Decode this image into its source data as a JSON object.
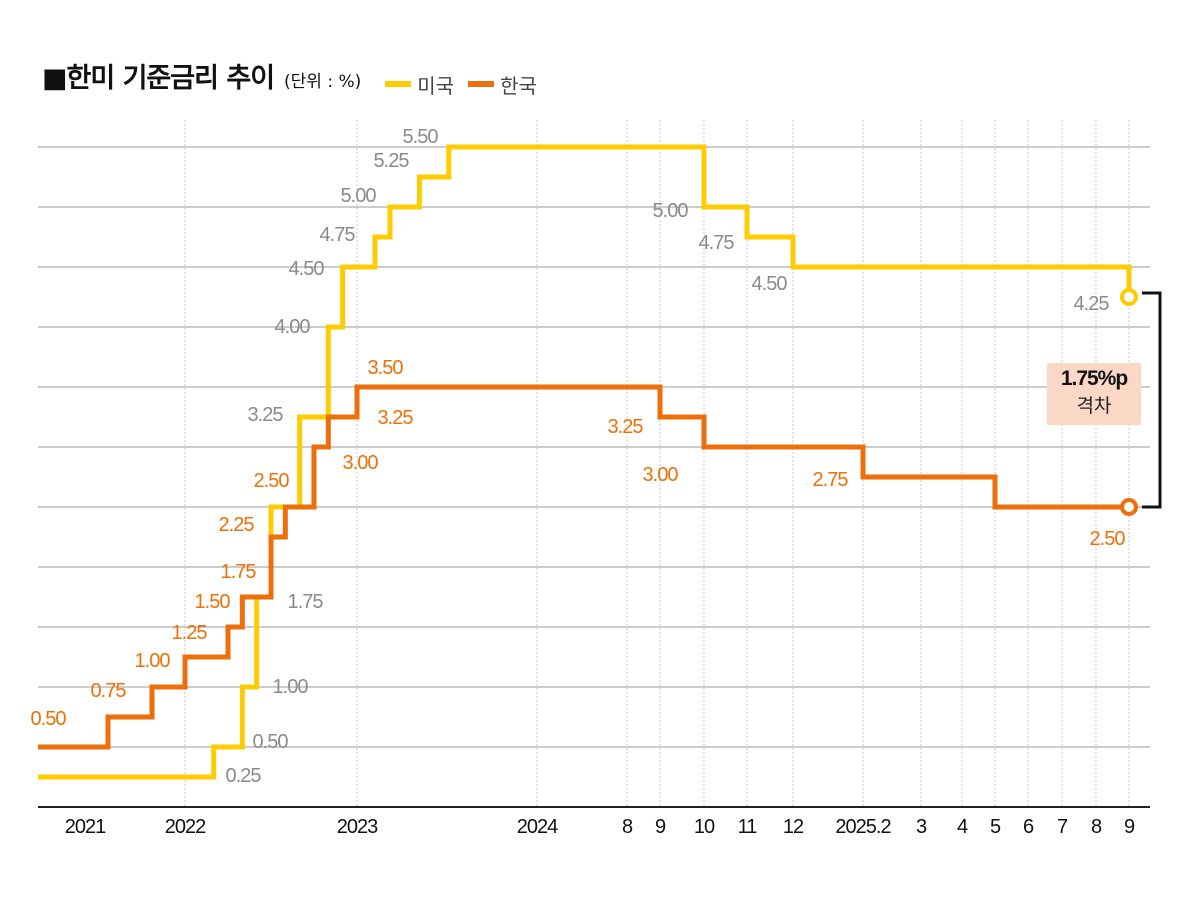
{
  "chart_data": {
    "type": "line",
    "step": true,
    "title": "■한미 기준금리 추이",
    "unit": "(단위 : %)",
    "ylim": [
      0,
      6
    ],
    "grid": true,
    "legend_placement": "top",
    "x_ticks": [
      {
        "date": "2021-06",
        "label": "2021"
      },
      {
        "date": "2022-01",
        "label": "2022"
      },
      {
        "date": "2023-01",
        "label": "2023"
      },
      {
        "date": "2024-01",
        "label": "2024"
      },
      {
        "date": "2024-08",
        "label": "8"
      },
      {
        "date": "2024-09",
        "label": "9"
      },
      {
        "date": "2024-10",
        "label": "10"
      },
      {
        "date": "2024-11",
        "label": "11"
      },
      {
        "date": "2024-12",
        "label": "12"
      },
      {
        "date": "2025-02",
        "label": "2025.2"
      },
      {
        "date": "2025-03",
        "label": "3"
      },
      {
        "date": "2025-04",
        "label": "4"
      },
      {
        "date": "2025-05",
        "label": "5"
      },
      {
        "date": "2025-06",
        "label": "6"
      },
      {
        "date": "2025-07",
        "label": "7"
      },
      {
        "date": "2025-08",
        "label": "8"
      },
      {
        "date": "2025-09",
        "label": "9"
      }
    ],
    "series": [
      {
        "name": "미국",
        "color": "#ffcc00",
        "label_color": "#8a8a8a",
        "points": [
          {
            "date": "2021-01",
            "value": 0.25,
            "label": "0.25"
          },
          {
            "date": "2022-03",
            "value": 0.5,
            "label": "0.50"
          },
          {
            "date": "2022-05",
            "value": 1.0,
            "label": "1.00"
          },
          {
            "date": "2022-06",
            "value": 1.75,
            "label": "1.75"
          },
          {
            "date": "2022-07",
            "value": 2.5,
            "label": ""
          },
          {
            "date": "2022-09",
            "value": 3.25,
            "label": "3.25"
          },
          {
            "date": "2022-11",
            "value": 4.0,
            "label": "4.00"
          },
          {
            "date": "2022-12",
            "value": 4.5,
            "label": "4.50"
          },
          {
            "date": "2023-02",
            "value": 4.75,
            "label": "4.75"
          },
          {
            "date": "2023-03",
            "value": 5.0,
            "label": "5.00"
          },
          {
            "date": "2023-05",
            "value": 5.25,
            "label": "5.25"
          },
          {
            "date": "2023-07",
            "value": 5.5,
            "label": "5.50"
          },
          {
            "date": "2024-10",
            "value": 5.0,
            "label": "5.00"
          },
          {
            "date": "2024-11",
            "value": 4.75,
            "label": "4.75"
          },
          {
            "date": "2024-12",
            "value": 4.5,
            "label": "4.50"
          },
          {
            "date": "2025-09",
            "value": 4.25,
            "label": "4.25"
          }
        ]
      },
      {
        "name": "한국",
        "color": "#ec6f0b",
        "label_color": "#ec6f0b",
        "points": [
          {
            "date": "2021-01",
            "value": 0.5,
            "label": "0.50"
          },
          {
            "date": "2021-08",
            "value": 0.75,
            "label": "0.75"
          },
          {
            "date": "2021-11",
            "value": 1.0,
            "label": "1.00"
          },
          {
            "date": "2022-01",
            "value": 1.25,
            "label": "1.25"
          },
          {
            "date": "2022-04",
            "value": 1.5,
            "label": "1.50"
          },
          {
            "date": "2022-05",
            "value": 1.75,
            "label": "1.75"
          },
          {
            "date": "2022-07",
            "value": 2.25,
            "label": "2.25"
          },
          {
            "date": "2022-08",
            "value": 2.5,
            "label": "2.50"
          },
          {
            "date": "2022-10",
            "value": 3.0,
            "label": "3.00"
          },
          {
            "date": "2022-11",
            "value": 3.25,
            "label": "3.25"
          },
          {
            "date": "2023-01",
            "value": 3.5,
            "label": "3.50"
          },
          {
            "date": "2024-09",
            "value": 3.25,
            "label": "3.25"
          },
          {
            "date": "2024-10",
            "value": 3.0,
            "label": "3.00"
          },
          {
            "date": "2025-02",
            "value": 2.75,
            "label": "2.75"
          },
          {
            "date": "2025-05",
            "value": 2.5,
            "label": "2.50"
          }
        ]
      }
    ],
    "end_date": "2025-09",
    "annotation": {
      "value": "1.75%p",
      "text": "격차",
      "box_color": "#fbd8c6"
    }
  }
}
